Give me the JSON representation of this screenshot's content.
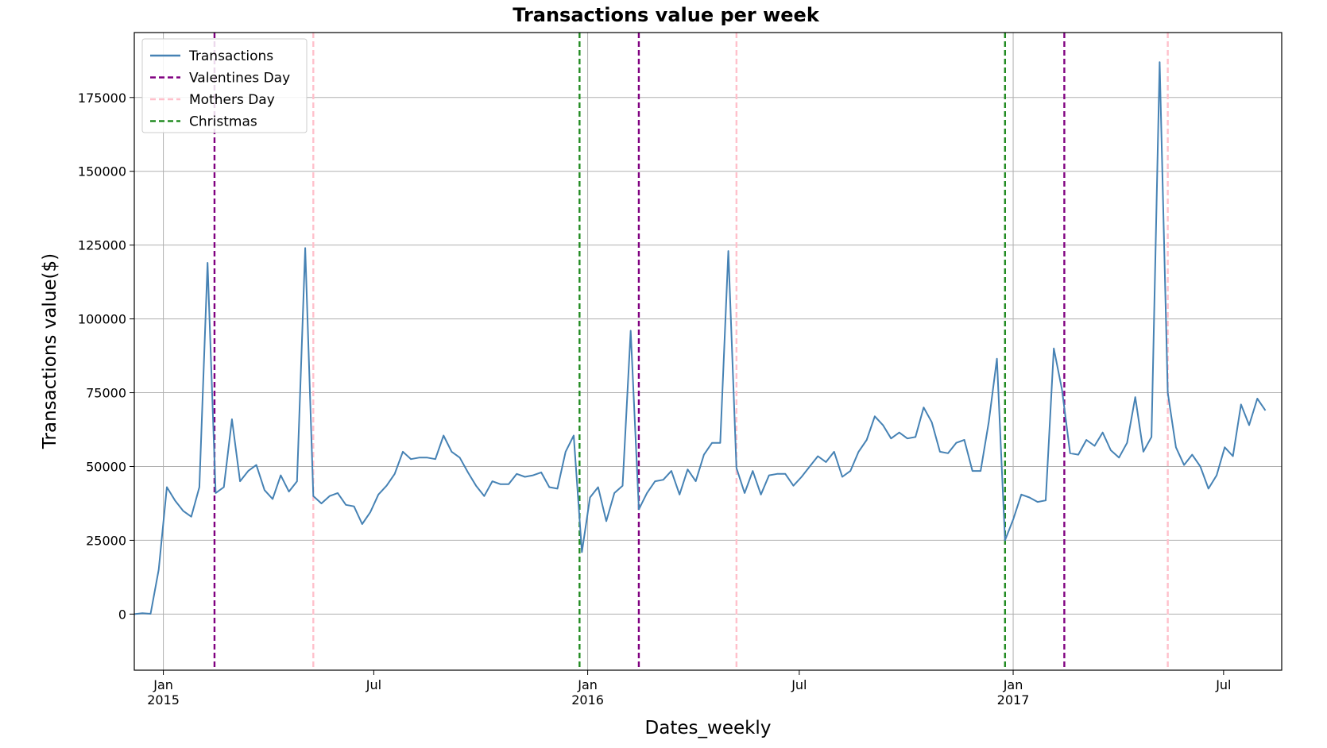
{
  "chart_data": {
    "type": "line",
    "title": "Transactions value per week",
    "xlabel": "Dates_weekly",
    "ylabel": "Transactions value($)",
    "xlim": [
      "2014-12-07",
      "2017-08-20"
    ],
    "ylim": [
      -19000,
      197000
    ],
    "grid": true,
    "legend_position": "top-left",
    "y_ticks": [
      0,
      25000,
      50000,
      75000,
      100000,
      125000,
      150000,
      175000
    ],
    "y_tick_labels": [
      "0",
      "25000",
      "50000",
      "75000",
      "100000",
      "125000",
      "150000",
      "175000"
    ],
    "x_ticks": [
      {
        "date": "2015-01-01",
        "label": "Jan",
        "sublabel": "2015",
        "grid": true
      },
      {
        "date": "2015-07-01",
        "label": "Jul",
        "sublabel": "",
        "grid": false
      },
      {
        "date": "2016-01-01",
        "label": "Jan",
        "sublabel": "2016",
        "grid": true
      },
      {
        "date": "2016-07-01",
        "label": "Jul",
        "sublabel": "",
        "grid": false
      },
      {
        "date": "2017-01-01",
        "label": "Jan",
        "sublabel": "2017",
        "grid": true
      },
      {
        "date": "2017-07-01",
        "label": "Jul",
        "sublabel": "",
        "grid": false
      }
    ],
    "series": [
      {
        "name": "Transactions",
        "color": "#4682b4",
        "points": [
          [
            "2014-12-07",
            0
          ],
          [
            "2014-12-14",
            300
          ],
          [
            "2014-12-21",
            100
          ],
          [
            "2014-12-28",
            15000
          ],
          [
            "2015-01-04",
            43000
          ],
          [
            "2015-01-11",
            38500
          ],
          [
            "2015-01-18",
            35000
          ],
          [
            "2015-01-25",
            33000
          ],
          [
            "2015-02-01",
            43000
          ],
          [
            "2015-02-08",
            119000
          ],
          [
            "2015-02-15",
            41000
          ],
          [
            "2015-02-22",
            43000
          ],
          [
            "2015-03-01",
            66000
          ],
          [
            "2015-03-08",
            45000
          ],
          [
            "2015-03-15",
            48500
          ],
          [
            "2015-03-22",
            50500
          ],
          [
            "2015-03-29",
            42000
          ],
          [
            "2015-04-05",
            39000
          ],
          [
            "2015-04-12",
            47000
          ],
          [
            "2015-04-19",
            41500
          ],
          [
            "2015-04-26",
            45000
          ],
          [
            "2015-05-03",
            124000
          ],
          [
            "2015-05-10",
            40000
          ],
          [
            "2015-05-17",
            37500
          ],
          [
            "2015-05-24",
            40000
          ],
          [
            "2015-05-31",
            41000
          ],
          [
            "2015-06-07",
            37000
          ],
          [
            "2015-06-14",
            36500
          ],
          [
            "2015-06-21",
            30500
          ],
          [
            "2015-06-28",
            34500
          ],
          [
            "2015-07-05",
            40500
          ],
          [
            "2015-07-12",
            43500
          ],
          [
            "2015-07-19",
            47500
          ],
          [
            "2015-07-26",
            55000
          ],
          [
            "2015-08-02",
            52500
          ],
          [
            "2015-08-09",
            53000
          ],
          [
            "2015-08-16",
            53000
          ],
          [
            "2015-08-23",
            52500
          ],
          [
            "2015-08-30",
            60500
          ],
          [
            "2015-09-06",
            55000
          ],
          [
            "2015-09-13",
            53000
          ],
          [
            "2015-09-20",
            48000
          ],
          [
            "2015-09-27",
            43500
          ],
          [
            "2015-10-04",
            40000
          ],
          [
            "2015-10-11",
            45000
          ],
          [
            "2015-10-18",
            44000
          ],
          [
            "2015-10-25",
            44000
          ],
          [
            "2015-11-01",
            47500
          ],
          [
            "2015-11-08",
            46500
          ],
          [
            "2015-11-15",
            47000
          ],
          [
            "2015-11-22",
            48000
          ],
          [
            "2015-11-29",
            43000
          ],
          [
            "2015-12-06",
            42500
          ],
          [
            "2015-12-13",
            55000
          ],
          [
            "2015-12-20",
            60500
          ],
          [
            "2015-12-27",
            21000
          ],
          [
            "2016-01-03",
            39500
          ],
          [
            "2016-01-10",
            43000
          ],
          [
            "2016-01-17",
            31500
          ],
          [
            "2016-01-24",
            41000
          ],
          [
            "2016-01-31",
            43500
          ],
          [
            "2016-02-07",
            96000
          ],
          [
            "2016-02-14",
            35500
          ],
          [
            "2016-02-21",
            41000
          ],
          [
            "2016-02-28",
            45000
          ],
          [
            "2016-03-06",
            45500
          ],
          [
            "2016-03-13",
            48500
          ],
          [
            "2016-03-20",
            40500
          ],
          [
            "2016-03-27",
            49000
          ],
          [
            "2016-04-03",
            45000
          ],
          [
            "2016-04-10",
            54000
          ],
          [
            "2016-04-17",
            58000
          ],
          [
            "2016-04-24",
            58000
          ],
          [
            "2016-05-01",
            123000
          ],
          [
            "2016-05-08",
            49500
          ],
          [
            "2016-05-15",
            41000
          ],
          [
            "2016-05-22",
            48500
          ],
          [
            "2016-05-29",
            40500
          ],
          [
            "2016-06-05",
            47000
          ],
          [
            "2016-06-12",
            47500
          ],
          [
            "2016-06-19",
            47500
          ],
          [
            "2016-06-26",
            43500
          ],
          [
            "2016-07-03",
            46500
          ],
          [
            "2016-07-10",
            50000
          ],
          [
            "2016-07-17",
            53500
          ],
          [
            "2016-07-24",
            51500
          ],
          [
            "2016-07-31",
            55000
          ],
          [
            "2016-08-07",
            46500
          ],
          [
            "2016-08-14",
            48500
          ],
          [
            "2016-08-21",
            55000
          ],
          [
            "2016-08-28",
            59000
          ],
          [
            "2016-09-04",
            67000
          ],
          [
            "2016-09-11",
            64000
          ],
          [
            "2016-09-18",
            59500
          ],
          [
            "2016-09-25",
            61500
          ],
          [
            "2016-10-02",
            59500
          ],
          [
            "2016-10-09",
            60000
          ],
          [
            "2016-10-16",
            70000
          ],
          [
            "2016-10-23",
            65000
          ],
          [
            "2016-10-30",
            55000
          ],
          [
            "2016-11-06",
            54500
          ],
          [
            "2016-11-13",
            58000
          ],
          [
            "2016-11-20",
            59000
          ],
          [
            "2016-11-27",
            48500
          ],
          [
            "2016-12-04",
            48500
          ],
          [
            "2016-12-11",
            65000
          ],
          [
            "2016-12-18",
            86500
          ],
          [
            "2016-12-25",
            25000
          ],
          [
            "2017-01-01",
            32000
          ],
          [
            "2017-01-08",
            40500
          ],
          [
            "2017-01-15",
            39500
          ],
          [
            "2017-01-22",
            38000
          ],
          [
            "2017-01-29",
            38500
          ],
          [
            "2017-02-05",
            90000
          ],
          [
            "2017-02-12",
            76000
          ],
          [
            "2017-02-19",
            54500
          ],
          [
            "2017-02-26",
            54000
          ],
          [
            "2017-03-05",
            59000
          ],
          [
            "2017-03-12",
            57000
          ],
          [
            "2017-03-19",
            61500
          ],
          [
            "2017-03-26",
            55500
          ],
          [
            "2017-04-02",
            53000
          ],
          [
            "2017-04-09",
            58000
          ],
          [
            "2017-04-16",
            73500
          ],
          [
            "2017-04-23",
            55000
          ],
          [
            "2017-04-30",
            60000
          ],
          [
            "2017-05-07",
            187000
          ],
          [
            "2017-05-14",
            75000
          ],
          [
            "2017-05-21",
            56500
          ],
          [
            "2017-05-28",
            50500
          ],
          [
            "2017-06-04",
            54000
          ],
          [
            "2017-06-11",
            50000
          ],
          [
            "2017-06-18",
            42500
          ],
          [
            "2017-06-25",
            47000
          ],
          [
            "2017-07-02",
            56500
          ],
          [
            "2017-07-09",
            53500
          ],
          [
            "2017-07-16",
            71000
          ],
          [
            "2017-07-23",
            64000
          ],
          [
            "2017-07-30",
            73000
          ],
          [
            "2017-08-06",
            69000
          ]
        ]
      }
    ],
    "event_lines": [
      {
        "name": "Valentines Day",
        "color": "#800080",
        "dates": [
          "2015-02-14",
          "2016-02-14",
          "2017-02-14"
        ]
      },
      {
        "name": "Mothers Day",
        "color": "#ffc0cb",
        "dates": [
          "2015-05-10",
          "2016-05-08",
          "2017-05-14"
        ]
      },
      {
        "name": "Christmas",
        "color": "#228b22",
        "dates": [
          "2015-12-25",
          "2016-12-25"
        ]
      }
    ],
    "legend": [
      "Transactions",
      "Valentines Day",
      "Mothers Day",
      "Christmas"
    ]
  }
}
